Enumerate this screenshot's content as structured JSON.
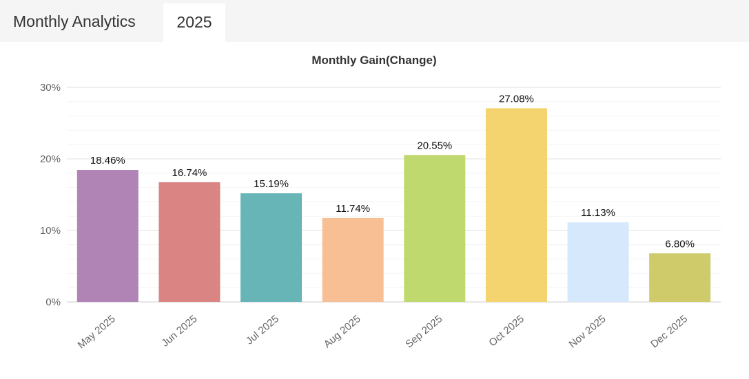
{
  "header": {
    "title": "Monthly Analytics",
    "tabs": [
      {
        "label": "2025",
        "active": true
      }
    ]
  },
  "chart_data": {
    "type": "bar",
    "title": "Monthly Gain(Change)",
    "xlabel": "",
    "ylabel": "",
    "categories": [
      "May 2025",
      "Jun 2025",
      "Jul 2025",
      "Aug 2025",
      "Sep 2025",
      "Oct 2025",
      "Nov 2025",
      "Dec 2025"
    ],
    "values": [
      18.46,
      16.74,
      15.19,
      11.74,
      20.55,
      27.08,
      11.13,
      6.8
    ],
    "value_labels": [
      "18.46%",
      "16.74%",
      "15.19%",
      "11.74%",
      "20.55%",
      "27.08%",
      "11.13%",
      "6.80%"
    ],
    "colors": [
      "#b085b6",
      "#da8484",
      "#67b5b7",
      "#f8bf94",
      "#c0d96f",
      "#f3d46f",
      "#d6e8fc",
      "#d0cb6a"
    ],
    "ylim": [
      0,
      30
    ],
    "yticks": [
      0,
      10,
      20,
      30
    ],
    "ytick_labels": [
      "0%",
      "10%",
      "20%",
      "30%"
    ],
    "grid": true,
    "legend": "none"
  }
}
